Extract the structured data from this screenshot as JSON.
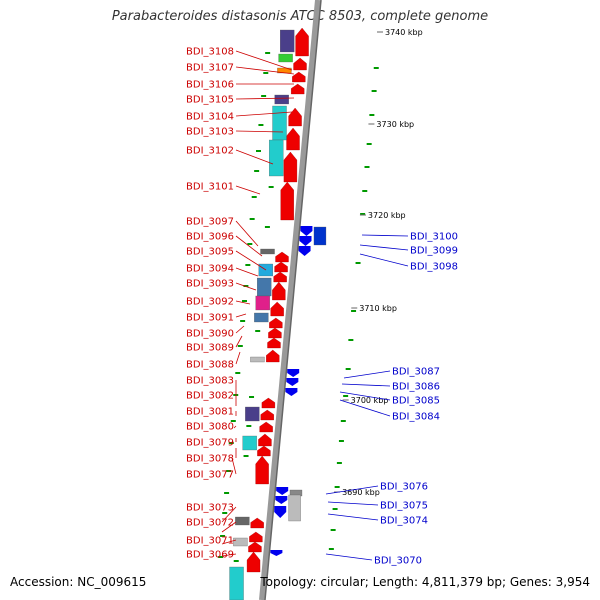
{
  "title": "Parabacteroides distasonis ATCC 8503, complete genome",
  "footer": {
    "accession": "Accession: NC_009615",
    "summary": "Topology: circular; Length: 4,811,379 bp; Genes: 3,954"
  },
  "colors": {
    "left_label": "#cc0000",
    "right_label": "#0000cc",
    "forward_gene": "#ee0000",
    "reverse_gene": "#0000ee",
    "backbone": "#999999",
    "tick": "#009900"
  },
  "ticks": [
    {
      "label": "3740 kbp"
    },
    {
      "label": "3730 kbp"
    },
    {
      "label": "3720 kbp"
    },
    {
      "label": "3710 kbp"
    },
    {
      "label": "3700 kbp"
    },
    {
      "label": "3690 kbp"
    }
  ],
  "left_genes": [
    {
      "label": "BDI_3108"
    },
    {
      "label": "BDI_3107"
    },
    {
      "label": "BDI_3106"
    },
    {
      "label": "BDI_3105"
    },
    {
      "label": "BDI_3104"
    },
    {
      "label": "BDI_3103"
    },
    {
      "label": "BDI_3102"
    },
    {
      "label": "BDI_3101"
    },
    {
      "label": "BDI_3097"
    },
    {
      "label": "BDI_3096"
    },
    {
      "label": "BDI_3095"
    },
    {
      "label": "BDI_3094"
    },
    {
      "label": "BDI_3093"
    },
    {
      "label": "BDI_3092"
    },
    {
      "label": "BDI_3091"
    },
    {
      "label": "BDI_3090"
    },
    {
      "label": "BDI_3089"
    },
    {
      "label": "BDI_3088"
    },
    {
      "label": "BDI_3083"
    },
    {
      "label": "BDI_3082"
    },
    {
      "label": "BDI_3081"
    },
    {
      "label": "BDI_3080"
    },
    {
      "label": "BDI_3079"
    },
    {
      "label": "BDI_3078"
    },
    {
      "label": "BDI_3077"
    },
    {
      "label": "BDI_3073"
    },
    {
      "label": "BDI_3072"
    },
    {
      "label": "BDI_3071"
    },
    {
      "label": "BDI_3069"
    }
  ],
  "right_genes": [
    {
      "label": "BDI_3100"
    },
    {
      "label": "BDI_3099"
    },
    {
      "label": "BDI_3098"
    },
    {
      "label": "BDI_3087"
    },
    {
      "label": "BDI_3086"
    },
    {
      "label": "BDI_3085"
    },
    {
      "label": "BDI_3084"
    },
    {
      "label": "BDI_3076"
    },
    {
      "label": "BDI_3075"
    },
    {
      "label": "BDI_3074"
    },
    {
      "label": "BDI_3070"
    }
  ]
}
